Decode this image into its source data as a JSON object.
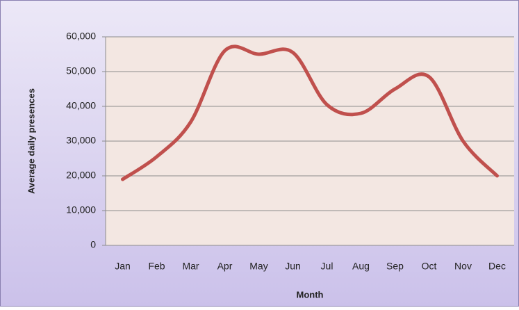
{
  "chart_data": {
    "type": "line",
    "x_label": "Month",
    "y_label": "Average daily presences",
    "categories": [
      "Jan",
      "Feb",
      "Mar",
      "Apr",
      "May",
      "Jun",
      "Jul",
      "Aug",
      "Sep",
      "Oct",
      "Nov",
      "Dec"
    ],
    "series": [
      {
        "name": "Average daily presences",
        "color": "#c0504d",
        "values": [
          19000,
          25500,
          35500,
          56000,
          55000,
          55500,
          40500,
          38000,
          45000,
          48500,
          30000,
          20000
        ]
      }
    ],
    "ylim": [
      0,
      60000
    ],
    "yticks": [
      0,
      {
        "value": 10000,
        "label": "10,000"
      },
      {
        "value": 20000,
        "label": "20,000"
      },
      {
        "value": 30000,
        "label": "30,000"
      },
      {
        "value": 40000,
        "label": "40,000"
      },
      {
        "value": 50000,
        "label": "50,000"
      },
      {
        "value": 60000,
        "label": "60,000"
      }
    ],
    "grid": true,
    "smooth": true
  }
}
